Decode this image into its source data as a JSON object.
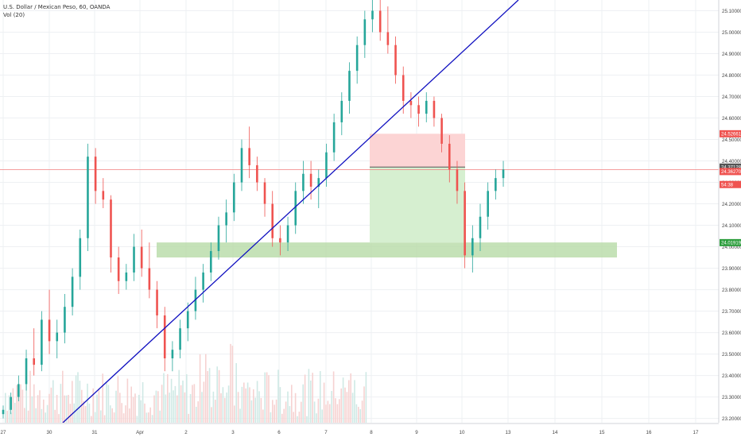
{
  "header": {
    "symbol_line": "U.S. Dollar / Mexican Peso, 60, OANDA",
    "indicator_line": "Vol (20)"
  },
  "colors": {
    "up": "#26a69a",
    "down": "#ef5350",
    "trendline": "#1010c0",
    "support_zone": "#b7dba6",
    "stop_zone": "#fcd4d4",
    "target_zone": "#d6efd0",
    "last_price_line": "#f07f7f",
    "grid": "#eef0f3"
  },
  "chart_data": {
    "type": "candlestick",
    "y_axis_ticks": [
      "25.10000",
      "25.00000",
      "24.90000",
      "24.80000",
      "24.70000",
      "24.60000",
      "24.50000",
      "24.40000",
      "24.30000",
      "24.20000",
      "24.10000",
      "24.00000",
      "23.90000",
      "23.80000",
      "23.70000",
      "23.60000",
      "23.50000",
      "23.40000",
      "23.30000",
      "23.20000"
    ],
    "x_axis_ticks": [
      "27",
      "30",
      "31",
      "Apr",
      "2",
      "3",
      "6",
      "7",
      "8",
      "9",
      "10",
      "13",
      "14",
      "15",
      "16",
      "17"
    ],
    "ylim": [
      23.18,
      25.15
    ],
    "price_labels": [
      {
        "value": "24.52661",
        "role": "stop"
      },
      {
        "value": "24.37128",
        "role": "last"
      },
      {
        "value": "24.36270",
        "role": "current"
      },
      {
        "value": "54:38",
        "role": "countdown"
      },
      {
        "value": "24.01919",
        "role": "target"
      }
    ],
    "trendline": {
      "from": [
        29.3,
        23.18
      ],
      "to": [
        34.9,
        25.15
      ]
    },
    "support_zone": {
      "y": [
        23.95,
        24.02
      ]
    },
    "position": {
      "entry": 24.37128,
      "stop": 24.52661,
      "target": 24.01919
    },
    "candles": [
      {
        "day": 27.0,
        "o": 23.22,
        "h": 23.26,
        "l": 23.2,
        "c": 23.24
      },
      {
        "day": 27.1,
        "o": 23.24,
        "h": 23.32,
        "l": 23.22,
        "c": 23.3
      },
      {
        "day": 27.2,
        "o": 23.3,
        "h": 23.4,
        "l": 23.28,
        "c": 23.36
      },
      {
        "day": 27.3,
        "o": 23.36,
        "h": 23.52,
        "l": 23.33,
        "c": 23.48
      },
      {
        "day": 27.4,
        "o": 23.48,
        "h": 23.62,
        "l": 23.4,
        "c": 23.45
      },
      {
        "day": 27.5,
        "o": 23.45,
        "h": 23.7,
        "l": 23.42,
        "c": 23.66
      },
      {
        "day": 27.6,
        "o": 23.66,
        "h": 23.8,
        "l": 23.5,
        "c": 23.56
      },
      {
        "day": 27.7,
        "o": 23.56,
        "h": 23.66,
        "l": 23.48,
        "c": 23.6
      },
      {
        "day": 27.8,
        "o": 23.6,
        "h": 23.78,
        "l": 23.55,
        "c": 23.72
      },
      {
        "day": 27.9,
        "o": 23.72,
        "h": 23.9,
        "l": 23.68,
        "c": 23.86
      },
      {
        "day": 28.0,
        "o": 23.86,
        "h": 24.08,
        "l": 23.8,
        "c": 24.04
      },
      {
        "day": 28.1,
        "o": 24.04,
        "h": 24.48,
        "l": 23.98,
        "c": 24.42
      },
      {
        "day": 28.2,
        "o": 24.42,
        "h": 24.46,
        "l": 24.2,
        "c": 24.26
      },
      {
        "day": 28.3,
        "o": 24.26,
        "h": 24.32,
        "l": 24.18,
        "c": 24.22
      },
      {
        "day": 28.4,
        "o": 24.22,
        "h": 24.24,
        "l": 23.88,
        "c": 23.95
      },
      {
        "day": 28.5,
        "o": 23.95,
        "h": 24.0,
        "l": 23.78,
        "c": 23.84
      },
      {
        "day": 28.6,
        "o": 23.84,
        "h": 23.92,
        "l": 23.8,
        "c": 23.88
      },
      {
        "day": 28.7,
        "o": 23.88,
        "h": 24.06,
        "l": 23.84,
        "c": 24.0
      },
      {
        "day": 28.8,
        "o": 24.0,
        "h": 24.08,
        "l": 23.86,
        "c": 23.9
      },
      {
        "day": 28.9,
        "o": 23.9,
        "h": 24.02,
        "l": 23.76,
        "c": 23.8
      },
      {
        "day": 29.0,
        "o": 23.8,
        "h": 23.84,
        "l": 23.62,
        "c": 23.68
      },
      {
        "day": 29.1,
        "o": 23.68,
        "h": 23.72,
        "l": 23.42,
        "c": 23.48
      },
      {
        "day": 29.2,
        "o": 23.48,
        "h": 23.56,
        "l": 23.42,
        "c": 23.52
      },
      {
        "day": 29.3,
        "o": 23.52,
        "h": 23.66,
        "l": 23.48,
        "c": 23.62
      },
      {
        "day": 29.4,
        "o": 23.62,
        "h": 23.74,
        "l": 23.56,
        "c": 23.7
      },
      {
        "day": 29.5,
        "o": 23.7,
        "h": 23.86,
        "l": 23.66,
        "c": 23.8
      },
      {
        "day": 29.6,
        "o": 23.8,
        "h": 23.92,
        "l": 23.74,
        "c": 23.88
      },
      {
        "day": 29.7,
        "o": 23.88,
        "h": 24.02,
        "l": 23.84,
        "c": 23.98
      },
      {
        "day": 29.8,
        "o": 23.98,
        "h": 24.14,
        "l": 23.94,
        "c": 24.1
      },
      {
        "day": 29.9,
        "o": 24.1,
        "h": 24.22,
        "l": 24.02,
        "c": 24.16
      },
      {
        "day": 30.0,
        "o": 24.16,
        "h": 24.34,
        "l": 24.12,
        "c": 24.3
      },
      {
        "day": 30.1,
        "o": 24.3,
        "h": 24.5,
        "l": 24.26,
        "c": 24.46
      },
      {
        "day": 30.2,
        "o": 24.46,
        "h": 24.56,
        "l": 24.32,
        "c": 24.38
      },
      {
        "day": 30.3,
        "o": 24.38,
        "h": 24.42,
        "l": 24.26,
        "c": 24.3
      },
      {
        "day": 30.4,
        "o": 24.3,
        "h": 24.32,
        "l": 24.14,
        "c": 24.2
      },
      {
        "day": 30.5,
        "o": 24.2,
        "h": 24.26,
        "l": 24.0,
        "c": 24.04
      },
      {
        "day": 30.6,
        "o": 24.04,
        "h": 24.1,
        "l": 23.96,
        "c": 24.02
      },
      {
        "day": 30.7,
        "o": 24.02,
        "h": 24.14,
        "l": 23.98,
        "c": 24.1
      },
      {
        "day": 30.8,
        "o": 24.1,
        "h": 24.3,
        "l": 24.06,
        "c": 24.26
      },
      {
        "day": 30.9,
        "o": 24.26,
        "h": 24.4,
        "l": 24.2,
        "c": 24.34
      },
      {
        "day": 31.0,
        "o": 24.34,
        "h": 24.4,
        "l": 24.22,
        "c": 24.28
      },
      {
        "day": 31.1,
        "o": 24.28,
        "h": 24.36,
        "l": 24.18,
        "c": 24.32
      },
      {
        "day": 31.2,
        "o": 24.32,
        "h": 24.48,
        "l": 24.28,
        "c": 24.44
      },
      {
        "day": 31.3,
        "o": 24.44,
        "h": 24.62,
        "l": 24.4,
        "c": 24.58
      },
      {
        "day": 31.4,
        "o": 24.58,
        "h": 24.72,
        "l": 24.52,
        "c": 24.68
      },
      {
        "day": 31.5,
        "o": 24.68,
        "h": 24.86,
        "l": 24.62,
        "c": 24.82
      },
      {
        "day": 31.6,
        "o": 24.82,
        "h": 24.98,
        "l": 24.76,
        "c": 24.94
      },
      {
        "day": 31.7,
        "o": 24.94,
        "h": 25.1,
        "l": 24.88,
        "c": 25.06
      },
      {
        "day": 31.8,
        "o": 25.06,
        "h": 25.15,
        "l": 25.0,
        "c": 25.1
      },
      {
        "day": 31.9,
        "o": 25.1,
        "h": 25.15,
        "l": 24.96,
        "c": 25.0
      },
      {
        "day": 32.0,
        "o": 25.0,
        "h": 25.12,
        "l": 24.9,
        "c": 24.94
      },
      {
        "day": 32.1,
        "o": 24.94,
        "h": 24.98,
        "l": 24.76,
        "c": 24.8
      },
      {
        "day": 32.2,
        "o": 24.8,
        "h": 24.84,
        "l": 24.62,
        "c": 24.68
      },
      {
        "day": 32.3,
        "o": 24.68,
        "h": 24.72,
        "l": 24.6,
        "c": 24.66
      },
      {
        "day": 32.4,
        "o": 24.66,
        "h": 24.7,
        "l": 24.56,
        "c": 24.62
      },
      {
        "day": 32.5,
        "o": 24.62,
        "h": 24.72,
        "l": 24.58,
        "c": 24.68
      },
      {
        "day": 32.6,
        "o": 24.68,
        "h": 24.7,
        "l": 24.56,
        "c": 24.6
      },
      {
        "day": 32.7,
        "o": 24.6,
        "h": 24.62,
        "l": 24.44,
        "c": 24.48
      },
      {
        "day": 32.8,
        "o": 24.48,
        "h": 24.52,
        "l": 24.3,
        "c": 24.36
      },
      {
        "day": 32.9,
        "o": 24.36,
        "h": 24.4,
        "l": 24.2,
        "c": 24.26
      },
      {
        "day": 33.0,
        "o": 24.26,
        "h": 24.3,
        "l": 23.9,
        "c": 23.96
      },
      {
        "day": 33.1,
        "o": 23.96,
        "h": 24.1,
        "l": 23.88,
        "c": 24.04
      },
      {
        "day": 33.2,
        "o": 24.04,
        "h": 24.2,
        "l": 23.98,
        "c": 24.14
      },
      {
        "day": 33.3,
        "o": 24.14,
        "h": 24.3,
        "l": 24.08,
        "c": 24.26
      },
      {
        "day": 33.4,
        "o": 24.26,
        "h": 24.36,
        "l": 24.22,
        "c": 24.32
      },
      {
        "day": 33.5,
        "o": 24.32,
        "h": 24.4,
        "l": 24.28,
        "c": 24.36
      }
    ]
  }
}
